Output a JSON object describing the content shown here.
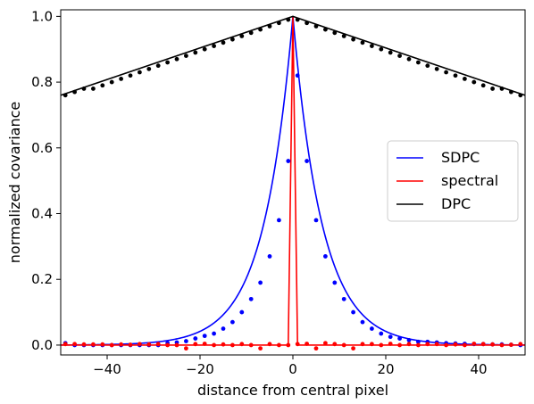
{
  "chart_data": {
    "type": "line",
    "xlabel": "distance from central pixel",
    "ylabel": "normalized covariance",
    "xlim": [
      -50,
      50
    ],
    "ylim": [
      -0.03,
      1.02
    ],
    "xticks": [
      -40,
      -20,
      0,
      20,
      40
    ],
    "xtick_labels": [
      "−40",
      "−20",
      "0",
      "20",
      "40"
    ],
    "yticks": [
      0.0,
      0.2,
      0.4,
      0.6,
      0.8,
      1.0
    ],
    "ytick_labels": [
      "0.0",
      "0.2",
      "0.4",
      "0.6",
      "0.8",
      "1.0"
    ],
    "grid": false,
    "legend_position": "center-right",
    "x": [
      -49,
      -47,
      -45,
      -43,
      -41,
      -39,
      -37,
      -35,
      -33,
      -31,
      -29,
      -27,
      -25,
      -23,
      -21,
      -19,
      -17,
      -15,
      -13,
      -11,
      -9,
      -7,
      -5,
      -3,
      -1,
      1,
      3,
      5,
      7,
      9,
      11,
      13,
      15,
      17,
      19,
      21,
      23,
      25,
      27,
      29,
      31,
      33,
      35,
      37,
      39,
      41,
      43,
      45,
      47,
      49
    ],
    "series": [
      {
        "name": "SDPC",
        "color": "#0000ff",
        "values": [
          0.006,
          0.0,
          0.0,
          0.0,
          0.0,
          0.0,
          0.0,
          0.0,
          0.0,
          0.0,
          0.0,
          0.006,
          0.008,
          0.012,
          0.02,
          0.028,
          0.035,
          0.05,
          0.07,
          0.1,
          0.14,
          0.19,
          0.27,
          0.38,
          0.56,
          0.82,
          0.56,
          0.38,
          0.27,
          0.19,
          0.14,
          0.1,
          0.07,
          0.05,
          0.035,
          0.025,
          0.02,
          0.015,
          0.01,
          0.01,
          0.008,
          0.006,
          0.005,
          0.004,
          0.003,
          0.003,
          0.002,
          0.002,
          0.001,
          0.0
        ]
      },
      {
        "name": "spectral",
        "color": "#ff0000",
        "values": [
          0.003,
          0.003,
          0.002,
          0.002,
          0.002,
          0.0,
          0.002,
          0.001,
          0.003,
          0.002,
          0.003,
          0.0,
          0.0,
          -0.01,
          0.003,
          0.004,
          0.0,
          0.002,
          0.0,
          0.003,
          0.0,
          -0.01,
          0.003,
          0.0,
          0.0,
          0.003,
          0.004,
          -0.01,
          0.006,
          0.003,
          0.0,
          -0.01,
          0.003,
          0.003,
          0.0,
          0.004,
          0.0,
          0.003,
          0.0,
          0.003,
          0.003,
          0.0,
          0.002,
          0.0,
          0.004,
          0.003,
          0.002,
          0.0,
          0.001,
          0.003
        ]
      },
      {
        "name": "DPC",
        "color": "#000000",
        "values": [
          0.76,
          0.77,
          0.78,
          0.78,
          0.79,
          0.8,
          0.81,
          0.82,
          0.83,
          0.84,
          0.85,
          0.86,
          0.87,
          0.88,
          0.89,
          0.9,
          0.91,
          0.92,
          0.93,
          0.94,
          0.95,
          0.96,
          0.97,
          0.98,
          0.99,
          0.99,
          0.98,
          0.97,
          0.96,
          0.95,
          0.94,
          0.93,
          0.92,
          0.91,
          0.9,
          0.89,
          0.88,
          0.87,
          0.86,
          0.85,
          0.84,
          0.83,
          0.82,
          0.81,
          0.8,
          0.79,
          0.78,
          0.78,
          0.77,
          0.76
        ]
      }
    ]
  }
}
